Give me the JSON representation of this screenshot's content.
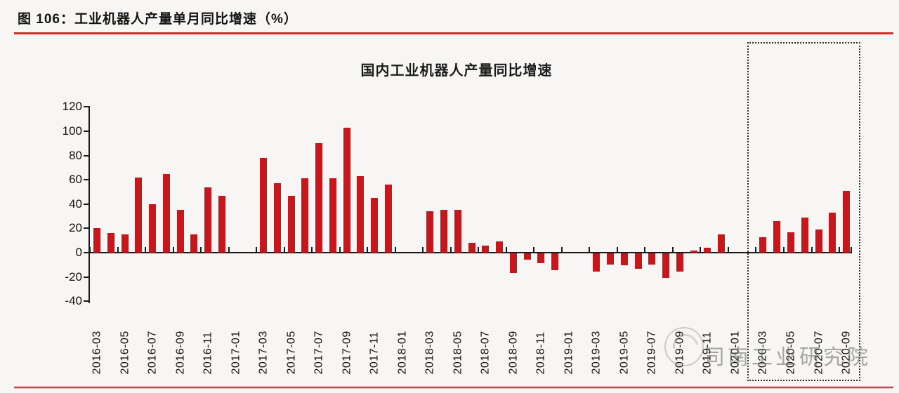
{
  "header": {
    "title": "图 106：工业机器人产量单月同比增速（%）"
  },
  "watermark": {
    "text": "司南工业研究院"
  },
  "colors": {
    "bar_red": "#c5171c",
    "top_rule_red": "#d02c2c",
    "bottom_rule_red": "#b94a4e",
    "axis_black": "#1a1a1a"
  },
  "chart_data": {
    "type": "bar",
    "title": "国内工业机器人产量同比增速",
    "xlabel": "",
    "ylabel": "",
    "ylim": [
      -40,
      120
    ],
    "ytick_step": 20,
    "grid": false,
    "legend": "none",
    "bar_color": "#c5171c",
    "x_label_every_n_months": 2,
    "highlight_box_range": [
      "2020-02",
      "2020-09"
    ],
    "categories": [
      "2016-03",
      "2016-04",
      "2016-05",
      "2016-06",
      "2016-07",
      "2016-08",
      "2016-09",
      "2016-10",
      "2016-11",
      "2016-12",
      "2017-01",
      "2017-02",
      "2017-03",
      "2017-04",
      "2017-05",
      "2017-06",
      "2017-07",
      "2017-08",
      "2017-09",
      "2017-10",
      "2017-11",
      "2017-12",
      "2018-01",
      "2018-02",
      "2018-03",
      "2018-04",
      "2018-05",
      "2018-06",
      "2018-07",
      "2018-08",
      "2018-09",
      "2018-10",
      "2018-11",
      "2018-12",
      "2019-01",
      "2019-02",
      "2019-03",
      "2019-04",
      "2019-05",
      "2019-06",
      "2019-07",
      "2019-08",
      "2019-09",
      "2019-10",
      "2019-11",
      "2019-12",
      "2020-01",
      "2020-02",
      "2020-03",
      "2020-04",
      "2020-05",
      "2020-06",
      "2020-07",
      "2020-08",
      "2020-09"
    ],
    "values": [
      20,
      16,
      15,
      62,
      40,
      65,
      35,
      15,
      54,
      47,
      0,
      0,
      78,
      57,
      47,
      61,
      90,
      61,
      103,
      63,
      45,
      56,
      0,
      0,
      34,
      35,
      35,
      8,
      6,
      9,
      -16,
      -5,
      -8,
      -14,
      0,
      0,
      -15,
      -9,
      -10,
      -13,
      -9,
      -20,
      -15,
      2,
      4,
      15,
      0,
      0,
      13,
      26,
      17,
      29,
      19,
      33,
      51
    ]
  }
}
